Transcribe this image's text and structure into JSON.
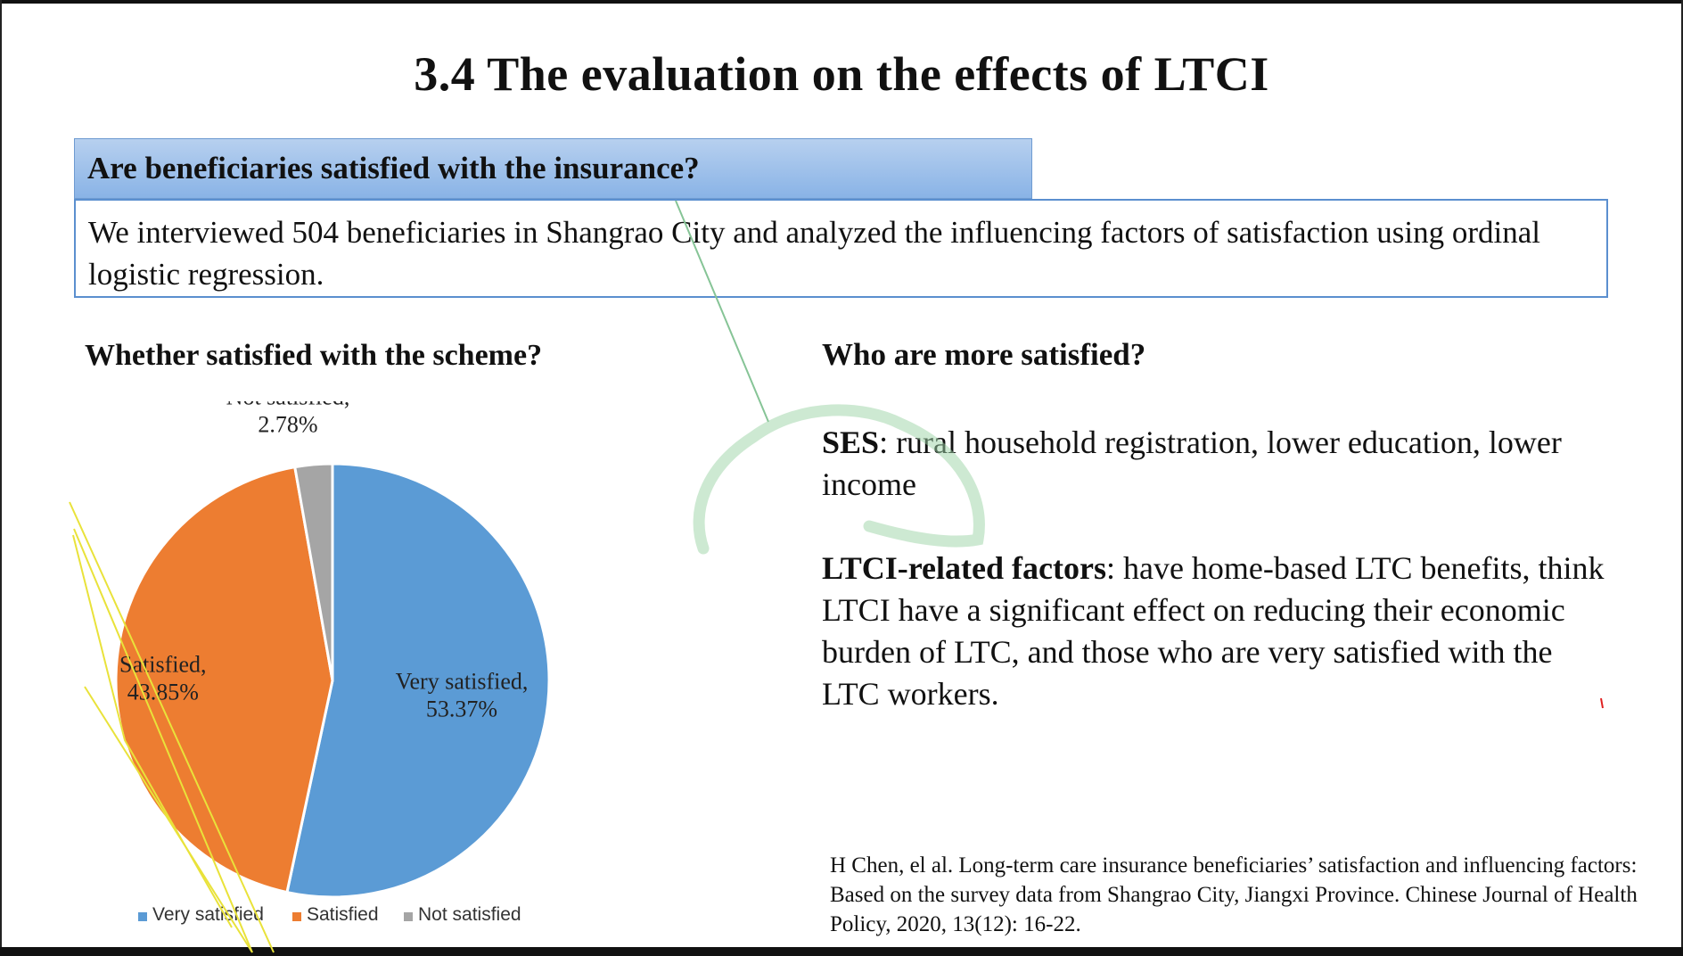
{
  "slide": {
    "title": "3.4 The evaluation on the effects of LTCI",
    "question": "Are beneficiaries satisfied with the insurance?",
    "intro": "We interviewed 504 beneficiaries in Shangrao City and analyzed the influencing factors of satisfaction using ordinal logistic regression."
  },
  "left": {
    "heading": "Whether satisfied with the scheme?"
  },
  "right": {
    "heading": "Who are more satisfied?",
    "ses_label": "SES",
    "ses_text": ": rural household registration, lower education, lower income",
    "ltci_label": "LTCI-related factors",
    "ltci_text": ": have home-based LTC benefits, think LTCI have a significant effect on reducing their economic burden of LTC, and those who are very satisfied with the LTC workers."
  },
  "citation": "H Chen, el al. Long-term care insurance beneficiaries’ satisfaction and influencing factors: Based on the survey data from Shangrao City, Jiangxi Province. Chinese Journal of Health Policy, 2020, 13(12): 16-22.",
  "chart_data": {
    "type": "pie",
    "title": "",
    "categories": [
      "Very satisfied",
      "Satisfied",
      "Not satisfied"
    ],
    "values": [
      53.37,
      43.85,
      2.78
    ],
    "data_labels": [
      {
        "name": "Very satisfied,",
        "value": "53.37%"
      },
      {
        "name": "Satisfied,",
        "value": "43.85%"
      },
      {
        "name": "Not satisfied,",
        "value": "2.78%"
      }
    ],
    "colors": [
      "#5b9bd5",
      "#ed7d31",
      "#a5a5a5"
    ],
    "legend_position": "bottom"
  }
}
